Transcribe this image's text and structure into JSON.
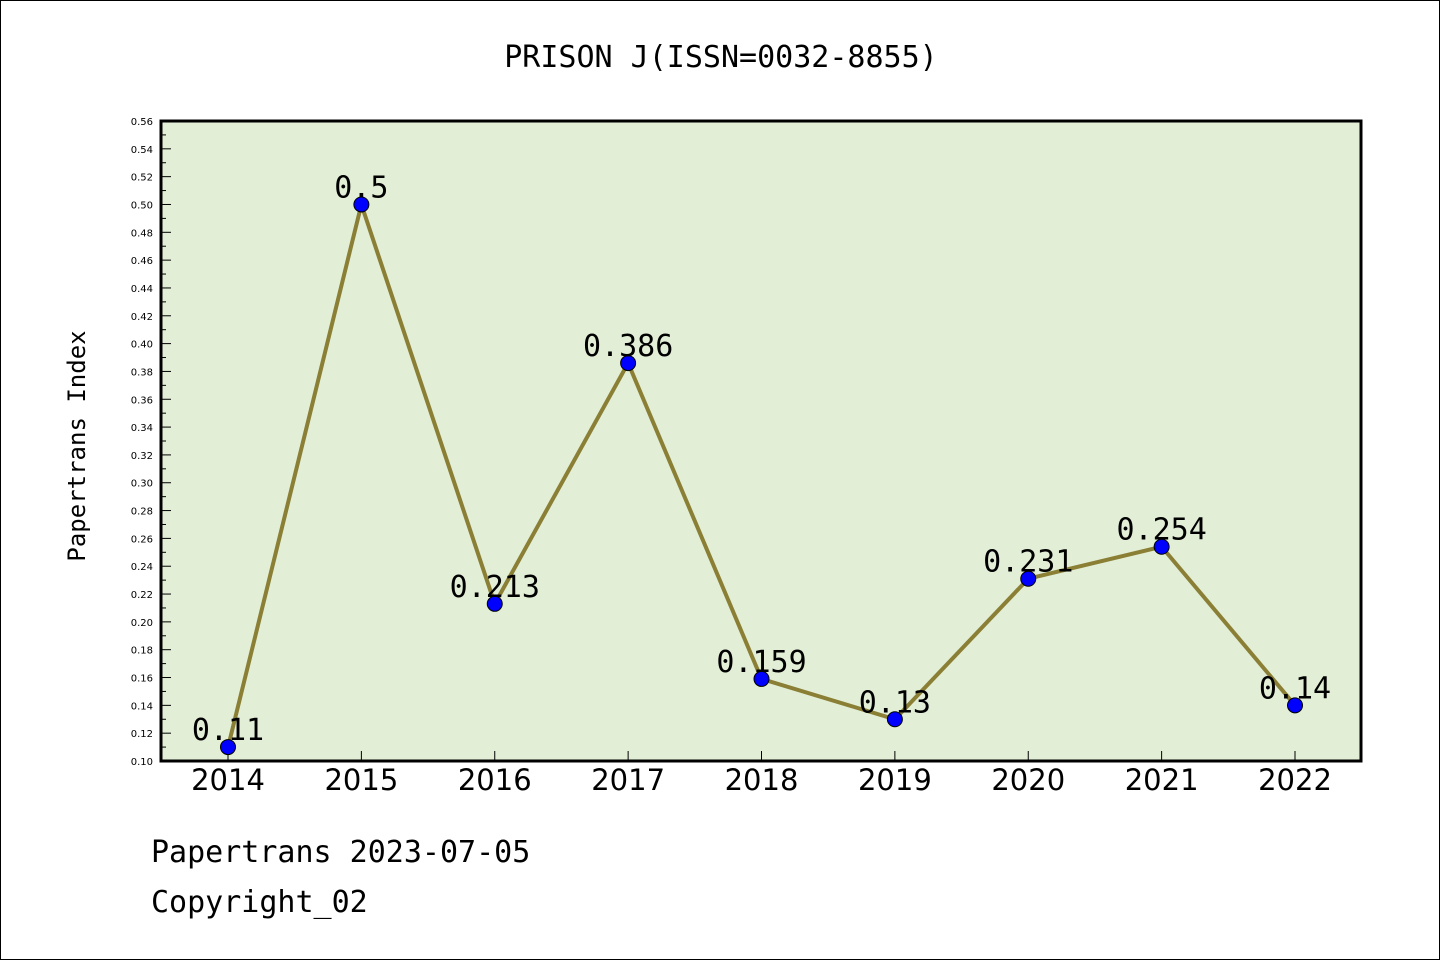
{
  "chart_data": {
    "type": "line",
    "title": "PRISON J(ISSN=0032-8855)",
    "xlabel": "",
    "ylabel": "Papertrans Index",
    "categories": [
      "2014",
      "2015",
      "2016",
      "2017",
      "2018",
      "2019",
      "2020",
      "2021",
      "2022"
    ],
    "series": [
      {
        "values": [
          0.11,
          0.5,
          0.213,
          0.386,
          0.159,
          0.13,
          0.231,
          0.254,
          0.14
        ],
        "labels": [
          "0.11",
          "0.5",
          "0.213",
          "0.386",
          "0.159",
          "0.13",
          "0.231",
          "0.254",
          "0.14"
        ]
      }
    ],
    "ylim": [
      0.1,
      0.56
    ],
    "yticks": [
      "0.10",
      "0.12",
      "0.14",
      "0.16",
      "0.18",
      "0.20",
      "0.22",
      "0.24",
      "0.26",
      "0.28",
      "0.30",
      "0.32",
      "0.34",
      "0.36",
      "0.38",
      "0.40",
      "0.42",
      "0.44",
      "0.46",
      "0.48",
      "0.50",
      "0.52",
      "0.54",
      "0.56"
    ],
    "grid": false,
    "legend": "none",
    "colors": {
      "plot_background": "#e2efd6",
      "line": "#8b7f35",
      "marker": "#0000ff"
    }
  },
  "footer": {
    "line1": "Papertrans 2023-07-05",
    "line2": "Copyright_02"
  }
}
